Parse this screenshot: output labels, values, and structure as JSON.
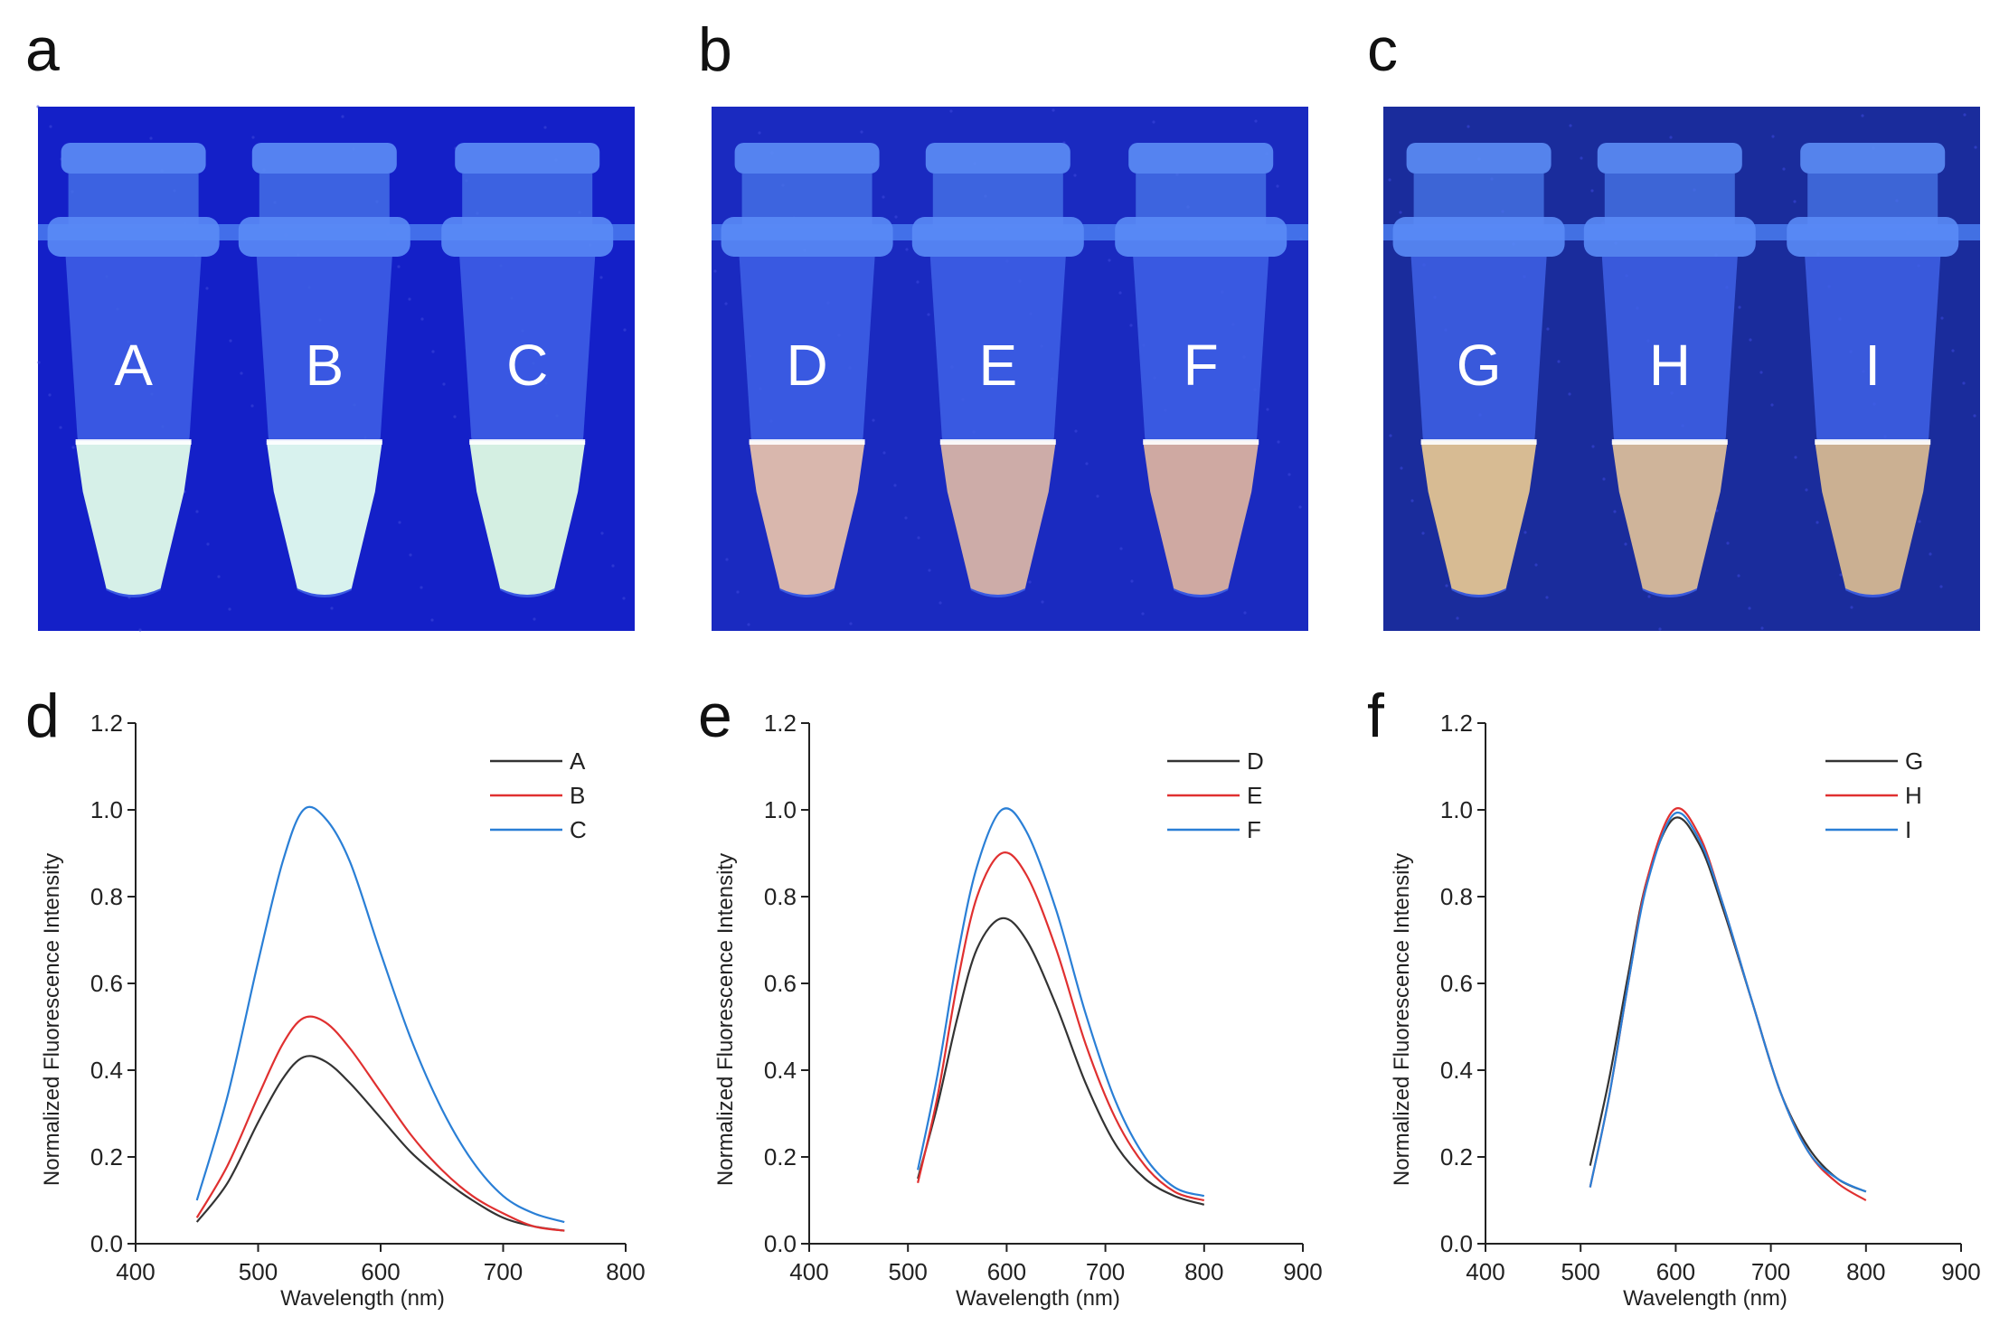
{
  "panels": {
    "a": "a",
    "b": "b",
    "c": "c",
    "d": "d",
    "e": "e",
    "f": "f"
  },
  "photos": [
    {
      "tubes": [
        "A",
        "B",
        "C"
      ],
      "liquid_colors": [
        "#d6f0e8",
        "#d8f2ee",
        "#d4efe2"
      ],
      "bg": "#1420c8"
    },
    {
      "tubes": [
        "D",
        "E",
        "F"
      ],
      "liquid_colors": [
        "#d9b7ad",
        "#cdaca8",
        "#cfa9a2"
      ],
      "bg": "#1a2ac0"
    },
    {
      "tubes": [
        "G",
        "H",
        "I"
      ],
      "liquid_colors": [
        "#d7bb93",
        "#cfb49a",
        "#cbb092"
      ],
      "bg": "#1a2c9c"
    }
  ],
  "chart_data": [
    {
      "type": "line",
      "xlabel": "Wavelength (nm)",
      "ylabel": "Normalized Fluorescence Intensity",
      "xlim": [
        400,
        800
      ],
      "ylim": [
        0,
        1.2
      ],
      "xticks": [
        "400",
        "500",
        "600",
        "700",
        "800"
      ],
      "yticks": [
        "0.0",
        "0.2",
        "0.4",
        "0.6",
        "0.8",
        "1.0",
        "1.2"
      ],
      "x": [
        450,
        475,
        500,
        520,
        537,
        555,
        575,
        600,
        625,
        650,
        675,
        700,
        725,
        750
      ],
      "series": [
        {
          "name": "A",
          "color": "#333333",
          "values": [
            0.05,
            0.14,
            0.28,
            0.38,
            0.43,
            0.42,
            0.37,
            0.29,
            0.21,
            0.15,
            0.1,
            0.06,
            0.04,
            0.03
          ]
        },
        {
          "name": "B",
          "color": "#e03030",
          "values": [
            0.06,
            0.18,
            0.34,
            0.46,
            0.52,
            0.51,
            0.45,
            0.35,
            0.25,
            0.17,
            0.11,
            0.07,
            0.04,
            0.03
          ]
        },
        {
          "name": "C",
          "color": "#2a7fd6",
          "values": [
            0.1,
            0.34,
            0.65,
            0.88,
            1.0,
            0.98,
            0.88,
            0.67,
            0.47,
            0.31,
            0.19,
            0.11,
            0.07,
            0.05
          ]
        }
      ]
    },
    {
      "type": "line",
      "xlabel": "Wavelength (nm)",
      "ylabel": "Normalized Fluorescence Intensity",
      "xlim": [
        400,
        900
      ],
      "ylim": [
        0,
        1.2
      ],
      "xticks": [
        "400",
        "500",
        "600",
        "700",
        "800",
        "900"
      ],
      "yticks": [
        "0.0",
        "0.2",
        "0.4",
        "0.6",
        "0.8",
        "1.0",
        "1.2"
      ],
      "x": [
        510,
        530,
        550,
        570,
        595,
        620,
        650,
        680,
        710,
        740,
        770,
        800
      ],
      "series": [
        {
          "name": "D",
          "color": "#333333",
          "values": [
            0.15,
            0.32,
            0.52,
            0.68,
            0.75,
            0.7,
            0.55,
            0.37,
            0.23,
            0.15,
            0.11,
            0.09
          ]
        },
        {
          "name": "E",
          "color": "#e03030",
          "values": [
            0.14,
            0.34,
            0.6,
            0.8,
            0.9,
            0.85,
            0.68,
            0.46,
            0.29,
            0.18,
            0.12,
            0.1
          ]
        },
        {
          "name": "F",
          "color": "#2a7fd6",
          "values": [
            0.17,
            0.39,
            0.66,
            0.87,
            1.0,
            0.95,
            0.77,
            0.53,
            0.33,
            0.2,
            0.13,
            0.11
          ]
        }
      ]
    },
    {
      "type": "line",
      "xlabel": "Wavelength (nm)",
      "ylabel": "Normalized Fluorescence Intensity",
      "xlim": [
        400,
        900
      ],
      "ylim": [
        0,
        1.2
      ],
      "xticks": [
        "400",
        "500",
        "600",
        "700",
        "800",
        "900"
      ],
      "yticks": [
        "0.0",
        "0.2",
        "0.4",
        "0.6",
        "0.8",
        "1.0",
        "1.2"
      ],
      "x": [
        510,
        530,
        550,
        570,
        598,
        625,
        650,
        680,
        710,
        740,
        770,
        800
      ],
      "series": [
        {
          "name": "G",
          "color": "#333333",
          "values": [
            0.18,
            0.38,
            0.62,
            0.84,
            0.98,
            0.92,
            0.77,
            0.56,
            0.35,
            0.22,
            0.15,
            0.12
          ]
        },
        {
          "name": "H",
          "color": "#e03030",
          "values": [
            0.13,
            0.34,
            0.6,
            0.84,
            1.0,
            0.94,
            0.78,
            0.56,
            0.35,
            0.21,
            0.14,
            0.1
          ]
        },
        {
          "name": "I",
          "color": "#2a7fd6",
          "values": [
            0.13,
            0.34,
            0.6,
            0.83,
            0.99,
            0.93,
            0.78,
            0.56,
            0.35,
            0.21,
            0.15,
            0.12
          ]
        }
      ]
    }
  ]
}
